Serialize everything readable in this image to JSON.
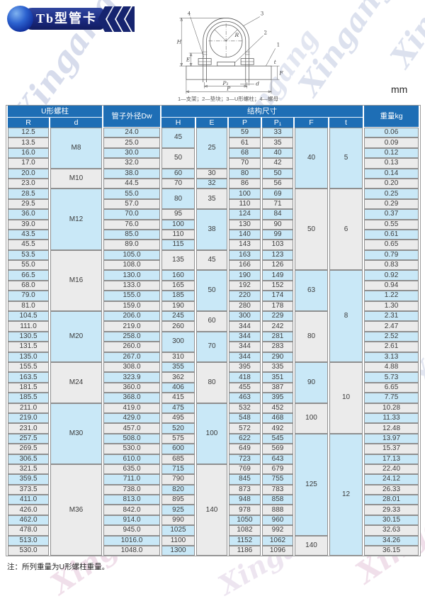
{
  "badge": {
    "title": "Tb型管卡"
  },
  "unit_label": "mm",
  "watermark_text": "Xingang",
  "diagram": {
    "caption": "1—支架；2—垫块；3—U形螺柱；4—螺母",
    "labels": {
      "h": "H",
      "e": "E",
      "r": "R",
      "p": "P",
      "p1": "P₁",
      "d": "d",
      "t": "t",
      "f": "F",
      "c1": "1",
      "c2": "2",
      "c3": "3",
      "c4": "4"
    }
  },
  "note": "注：所列重量为U形螺柱重量。",
  "table": {
    "header": {
      "group_u": "U形螺柱",
      "col_dw": "管子外径Dw",
      "group_struct": "结构尺寸",
      "col_weight": "重量kg",
      "sub": [
        "R",
        "d",
        "H",
        "E",
        "P",
        "P₁",
        "F",
        "t"
      ]
    },
    "colors": {
      "header_bg": "#1e6eb5",
      "row_blue": "#c9e8f7",
      "row_gray": "#ebebeb",
      "border": "#8f8f8f"
    },
    "R": [
      "12.5",
      "13.5",
      "16.0",
      "17.0",
      "20.0",
      "23.0",
      "28.5",
      "29.5",
      "36.0",
      "39.0",
      "43.5",
      "45.5",
      "53.5",
      "55.0",
      "66.5",
      "68.0",
      "79.0",
      "81.0",
      "104.5",
      "111.0",
      "130.5",
      "131.5",
      "135.0",
      "155.5",
      "163.5",
      "181.5",
      "185.5",
      "211.0",
      "219.0",
      "231.0",
      "257.5",
      "269.5",
      "306.5",
      "321.5",
      "359.5",
      "373.5",
      "411.0",
      "426.0",
      "462.0",
      "478.0",
      "513.0",
      "530.0"
    ],
    "Dw": [
      "24.0",
      "25.0",
      "30.0",
      "32.0",
      "38.0",
      "44.5",
      "55.0",
      "57.0",
      "70.0",
      "76.0",
      "85.0",
      "89.0",
      "105.0",
      "108.0",
      "130.0",
      "133.0",
      "155.0",
      "159.0",
      "206.0",
      "219.0",
      "258.0",
      "260.0",
      "267.0",
      "308.0",
      "323.9",
      "360.0",
      "368.0",
      "419.0",
      "429.0",
      "457.0",
      "508.0",
      "530.0",
      "610.0",
      "635.0",
      "711.0",
      "738.0",
      "813.0",
      "842.0",
      "914.0",
      "945.0",
      "1016.0",
      "1048.0"
    ],
    "P": [
      "59",
      "61",
      "68",
      "70",
      "80",
      "86",
      "100",
      "110",
      "124",
      "130",
      "140",
      "143",
      "163",
      "166",
      "190",
      "192",
      "220",
      "280",
      "300",
      "344",
      "344",
      "344",
      "344",
      "395",
      "418",
      "455",
      "463",
      "532",
      "548",
      "572",
      "622",
      "649",
      "723",
      "769",
      "845",
      "873",
      "948",
      "978",
      "1050",
      "1082",
      "1152",
      "1186"
    ],
    "P1": [
      "33",
      "35",
      "40",
      "42",
      "50",
      "56",
      "69",
      "71",
      "84",
      "90",
      "99",
      "103",
      "123",
      "126",
      "149",
      "152",
      "174",
      "178",
      "229",
      "242",
      "281",
      "283",
      "290",
      "335",
      "351",
      "387",
      "395",
      "452",
      "468",
      "492",
      "545",
      "569",
      "643",
      "679",
      "755",
      "783",
      "858",
      "888",
      "960",
      "992",
      "1062",
      "1096"
    ],
    "weight": [
      "0.06",
      "0.09",
      "0.12",
      "0.13",
      "0.14",
      "0.20",
      "0.25",
      "0.29",
      "0.37",
      "0.55",
      "0.61",
      "0.65",
      "0.79",
      "0.83",
      "0.92",
      "0.94",
      "1.22",
      "1.30",
      "2.31",
      "2.47",
      "2.52",
      "2.61",
      "3.13",
      "4.88",
      "5.73",
      "6.65",
      "7.75",
      "10.28",
      "11.33",
      "12.48",
      "13.97",
      "15.37",
      "17.13",
      "22.40",
      "24.12",
      "26.33",
      "28.01",
      "29.33",
      "30.15",
      "32.63",
      "34.26",
      "36.15"
    ],
    "d": [
      {
        "v": "M8",
        "span": 4
      },
      {
        "v": "M10",
        "span": 2
      },
      {
        "v": "M12",
        "span": 6
      },
      {
        "v": "M16",
        "span": 6
      },
      {
        "v": "M20",
        "span": 5
      },
      {
        "v": "M24",
        "span": 4
      },
      {
        "v": "M30",
        "span": 6
      },
      {
        "v": "M36",
        "span": 9
      }
    ],
    "H": [
      {
        "v": "45",
        "span": 2
      },
      {
        "v": "50",
        "span": 2
      },
      {
        "v": "60",
        "span": 1
      },
      {
        "v": "70",
        "span": 1
      },
      {
        "v": "80",
        "span": 2
      },
      {
        "v": "95",
        "span": 1
      },
      {
        "v": "100",
        "span": 1
      },
      {
        "v": "110",
        "span": 1
      },
      {
        "v": "115",
        "span": 1
      },
      {
        "v": "135",
        "span": 2
      },
      {
        "v": "160",
        "span": 1
      },
      {
        "v": "165",
        "span": 1
      },
      {
        "v": "185",
        "span": 1
      },
      {
        "v": "190",
        "span": 1
      },
      {
        "v": "245",
        "span": 1
      },
      {
        "v": "260",
        "span": 1
      },
      {
        "v": "300",
        "span": 2
      },
      {
        "v": "310",
        "span": 1
      },
      {
        "v": "355",
        "span": 1
      },
      {
        "v": "362",
        "span": 1
      },
      {
        "v": "406",
        "span": 1
      },
      {
        "v": "415",
        "span": 1
      },
      {
        "v": "475",
        "span": 1
      },
      {
        "v": "495",
        "span": 1
      },
      {
        "v": "520",
        "span": 1
      },
      {
        "v": "575",
        "span": 1
      },
      {
        "v": "600",
        "span": 1
      },
      {
        "v": "685",
        "span": 1
      },
      {
        "v": "715",
        "span": 1
      },
      {
        "v": "790",
        "span": 1
      },
      {
        "v": "820",
        "span": 1
      },
      {
        "v": "895",
        "span": 1
      },
      {
        "v": "925",
        "span": 1
      },
      {
        "v": "990",
        "span": 1
      },
      {
        "v": "1025",
        "span": 1
      },
      {
        "v": "1100",
        "span": 1
      },
      {
        "v": "1300",
        "span": 1
      }
    ],
    "E": [
      {
        "v": "25",
        "span": 4
      },
      {
        "v": "30",
        "span": 1
      },
      {
        "v": "32",
        "span": 1
      },
      {
        "v": "35",
        "span": 2
      },
      {
        "v": "38",
        "span": 4
      },
      {
        "v": "45",
        "span": 2
      },
      {
        "v": "50",
        "span": 4
      },
      {
        "v": "60",
        "span": 2
      },
      {
        "v": "70",
        "span": 3
      },
      {
        "v": "80",
        "span": 4
      },
      {
        "v": "100",
        "span": 6
      },
      {
        "v": "140",
        "span": 9
      }
    ],
    "F": [
      {
        "v": "40",
        "span": 6
      },
      {
        "v": "50",
        "span": 8
      },
      {
        "v": "63",
        "span": 4
      },
      {
        "v": "80",
        "span": 5
      },
      {
        "v": "90",
        "span": 4
      },
      {
        "v": "100",
        "span": 3
      },
      {
        "v": "125",
        "span": 10
      },
      {
        "v": "140",
        "span": 2
      }
    ],
    "t": [
      {
        "v": "5",
        "span": 6
      },
      {
        "v": "6",
        "span": 8
      },
      {
        "v": "8",
        "span": 9
      },
      {
        "v": "10",
        "span": 7
      },
      {
        "v": "12",
        "span": 12
      }
    ]
  }
}
